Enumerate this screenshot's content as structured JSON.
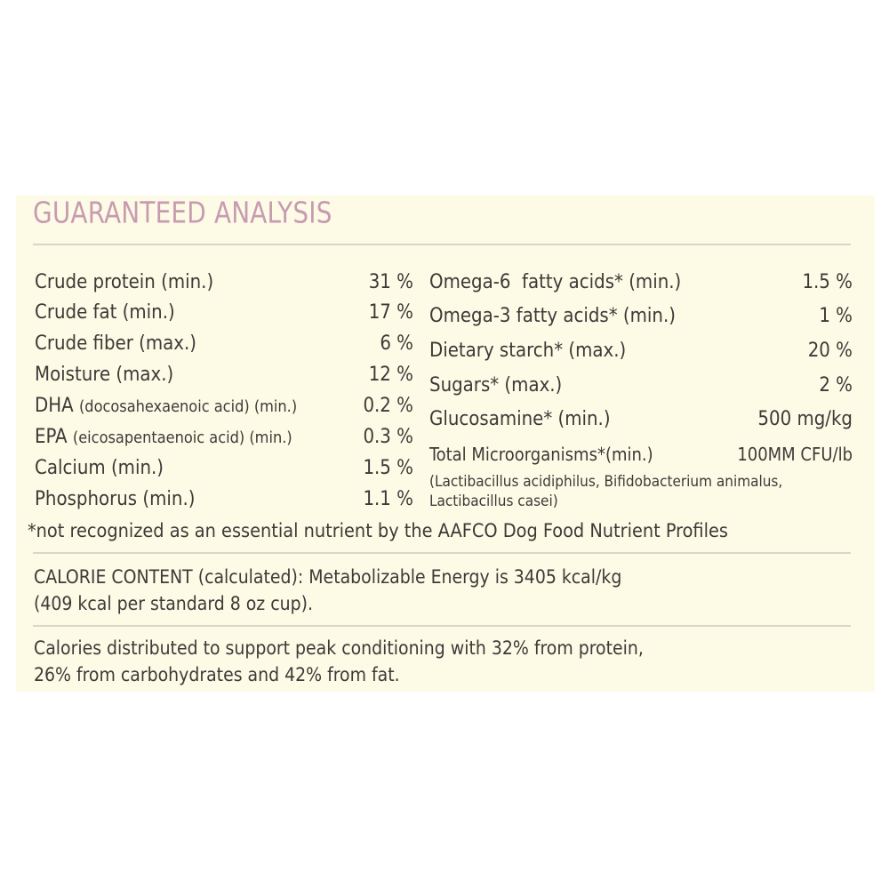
{
  "title": "GUARANTEED ANALYSIS",
  "colors": {
    "panel": "#fdfbe6",
    "title": "#c79bb0",
    "text": "#3d3a38",
    "rule": "#d9d6c6"
  },
  "left": [
    {
      "label": "Crude protein (min.)",
      "value": "31 %"
    },
    {
      "label": "Crude fat (min.)",
      "value": "17 %"
    },
    {
      "label": "Crude fiber (max.)",
      "value": "6 %"
    },
    {
      "label": "Moisture (max.)",
      "value": "12 %"
    },
    {
      "label": "DHA",
      "label_detail": "(docosahexaenoic acid) (min.)",
      "value": "0.2 %"
    },
    {
      "label": "EPA",
      "label_detail": "(eicosapentaenoic acid) (min.)",
      "value": "0.3 %"
    },
    {
      "label": "Calcium (min.)",
      "value": "1.5 %"
    },
    {
      "label": "Phosphorus (min.)",
      "value": "1.1 %"
    }
  ],
  "right": [
    {
      "label": "Omega-6  fatty acids* (min.)",
      "value": "1.5 %"
    },
    {
      "label": "Omega-3 fatty acids* (min.)",
      "value": "1 %"
    },
    {
      "label": "Dietary starch* (max.)",
      "value": "20 %"
    },
    {
      "label": "Sugars* (max.)",
      "value": "2 %"
    },
    {
      "label": "Glucosamine* (min.)",
      "value": "500 mg/kg"
    },
    {
      "label": "Total Microorganisms*(min.)",
      "value": "100MM CFU/lb"
    }
  ],
  "microorganisms_note_1": "(Lactibacillus acidiphilus, Bifidobacterium animalus,",
  "microorganisms_note_2": "Lactibacillus casei)",
  "footnote": "*not recognized as an essential nutrient by the AAFCO Dog Food Nutrient Profiles",
  "calorie_line_1": "CALORIE CONTENT (calculated): Metabolizable Energy is 3405 kcal/kg",
  "calorie_line_2": "(409 kcal per standard 8 oz cup).",
  "distribution_line_1": "Calories distributed to support peak conditioning with 32% from protein,",
  "distribution_line_2": "26% from carbohydrates and 42% from fat."
}
